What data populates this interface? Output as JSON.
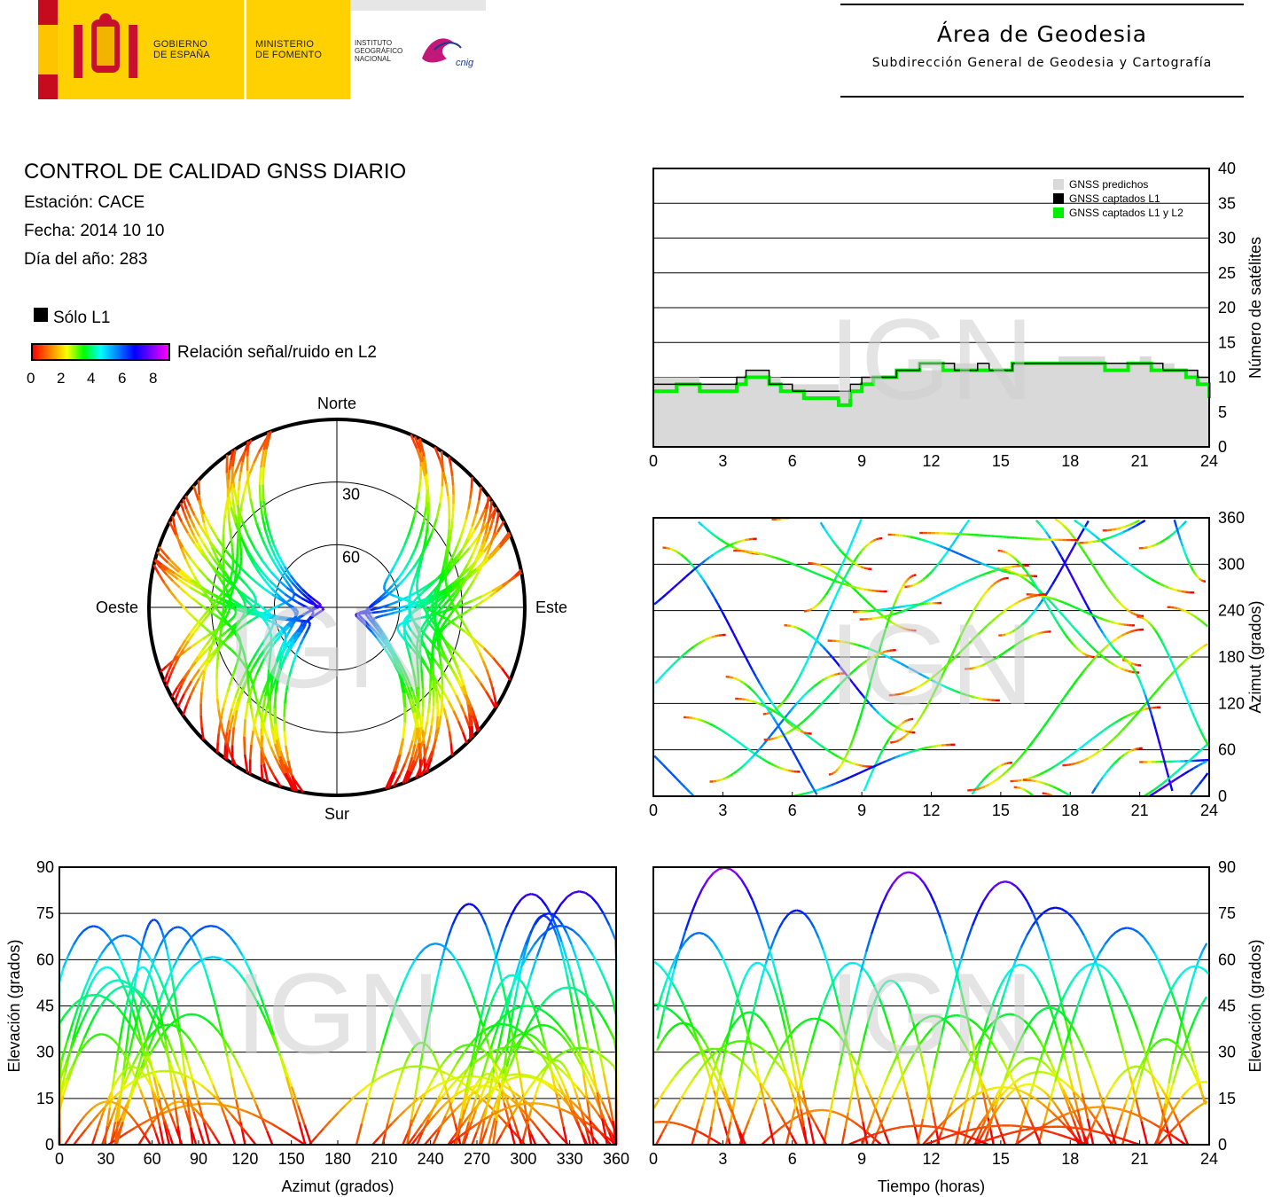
{
  "header": {
    "gobierno": [
      "GOBIERNO",
      "DE ESPAÑA"
    ],
    "ministerio": [
      "MINISTERIO",
      "DE FOMENTO"
    ],
    "instituto": [
      "INSTITUTO",
      "GEOGRÁFICO",
      "NACIONAL"
    ],
    "cnig": "cnig",
    "area_title": "Área de Geodesia",
    "area_subtitle": "Subdirección General de Geodesia y Cartografía"
  },
  "report": {
    "title": "CONTROL DE CALIDAD GNSS DIARIO",
    "station": "Estación: CACE",
    "date": "Fecha: 2014 10 10",
    "doy": "Día del año: 283"
  },
  "legend": {
    "solo_l1": "Sólo L1",
    "colorbar_label": "Relación señal/ruido en L2",
    "colorbar_ticks": [
      "0",
      "2",
      "4",
      "6",
      "8"
    ]
  },
  "watermark": "IGN",
  "colors": {
    "predicted": "#d9d9d9",
    "l1": "#000000",
    "l1l2": "#00ee00"
  },
  "chart_data": [
    {
      "id": "satellites",
      "type": "area",
      "ylabel": "Número de satélites",
      "xlim": [
        0,
        24
      ],
      "ylim": [
        0,
        40
      ],
      "x_ticks": [
        0,
        3,
        6,
        9,
        12,
        15,
        18,
        21,
        24
      ],
      "y_ticks": [
        0,
        5,
        10,
        15,
        20,
        25,
        30,
        35,
        40
      ],
      "legend": [
        "GNSS predichos",
        "GNSS captados L1",
        "GNSS captados L1 y L2"
      ],
      "legend_position": "top-right",
      "x": [
        0,
        1,
        2,
        3,
        3.6,
        4,
        4.5,
        5,
        5.5,
        6,
        6.5,
        7,
        7.5,
        8,
        8.5,
        9,
        9.5,
        10,
        10.5,
        11,
        11.5,
        12,
        12.5,
        13,
        13.5,
        14,
        14.5,
        15,
        15.5,
        16,
        16.5,
        17,
        17.5,
        18,
        18.5,
        19,
        19.5,
        20,
        20.5,
        21,
        21.5,
        22,
        22.5,
        23,
        23.5,
        24
      ],
      "series": [
        {
          "name": "GNSS predichos",
          "values": [
            10,
            10,
            9,
            9,
            10,
            11,
            11,
            10,
            9,
            9,
            9,
            9,
            9,
            8,
            9,
            10,
            10,
            10,
            11,
            11,
            11,
            11,
            12,
            12,
            12,
            12,
            11,
            11,
            12,
            12,
            12,
            12,
            13,
            13,
            13,
            13,
            12,
            12,
            12,
            13,
            12,
            12,
            11,
            11,
            10,
            8
          ]
        },
        {
          "name": "GNSS captados L1",
          "values": [
            9,
            9,
            9,
            9,
            10,
            11,
            11,
            9,
            9,
            8,
            8,
            8,
            8,
            8,
            9,
            10,
            10,
            10,
            11,
            11,
            12,
            12,
            12,
            11,
            11,
            12,
            11,
            11,
            12,
            12,
            12,
            12,
            12,
            12,
            12,
            12,
            12,
            12,
            12,
            12,
            12,
            11,
            11,
            11,
            10,
            8
          ]
        },
        {
          "name": "GNSS captados L1 y L2",
          "values": [
            8,
            9,
            8,
            8,
            9,
            10,
            10,
            9,
            8,
            8,
            7,
            7,
            7,
            6,
            8,
            9,
            10,
            10,
            11,
            11,
            12,
            12,
            11,
            11,
            11,
            11,
            11,
            11,
            12,
            12,
            12,
            12,
            12,
            12,
            12,
            12,
            11,
            11,
            12,
            12,
            11,
            11,
            11,
            10,
            9,
            7
          ]
        }
      ]
    },
    {
      "id": "azimuth_time",
      "type": "scatter",
      "ylabel": "Azimut (grados)",
      "xlim": [
        0,
        24
      ],
      "ylim": [
        0,
        360
      ],
      "x_ticks": [
        0,
        3,
        6,
        9,
        12,
        15,
        18,
        21,
        24
      ],
      "y_ticks": [
        0,
        60,
        120,
        180,
        240,
        300,
        360
      ]
    },
    {
      "id": "skyplot",
      "type": "scatter",
      "labels": {
        "north": "Norte",
        "south": "Sur",
        "east": "Este",
        "west": "Oeste"
      },
      "ring_labels": [
        "30",
        "60"
      ]
    },
    {
      "id": "elev_azimuth",
      "type": "scatter",
      "xlabel": "Azimut (grados)",
      "ylabel": "Elevación (grados)",
      "xlim": [
        0,
        360
      ],
      "ylim": [
        0,
        90
      ],
      "x_ticks": [
        0,
        30,
        60,
        90,
        120,
        150,
        180,
        210,
        240,
        270,
        300,
        330,
        360
      ],
      "y_ticks": [
        0,
        15,
        30,
        45,
        60,
        75,
        90
      ]
    },
    {
      "id": "elev_time",
      "type": "scatter",
      "xlabel": "Tiempo (horas)",
      "ylabel": "Elevación (grados)",
      "xlim": [
        0,
        24
      ],
      "ylim": [
        0,
        90
      ],
      "x_ticks": [
        0,
        3,
        6,
        9,
        12,
        15,
        18,
        21,
        24
      ],
      "y_ticks": [
        0,
        15,
        30,
        45,
        60,
        75,
        90
      ]
    }
  ]
}
